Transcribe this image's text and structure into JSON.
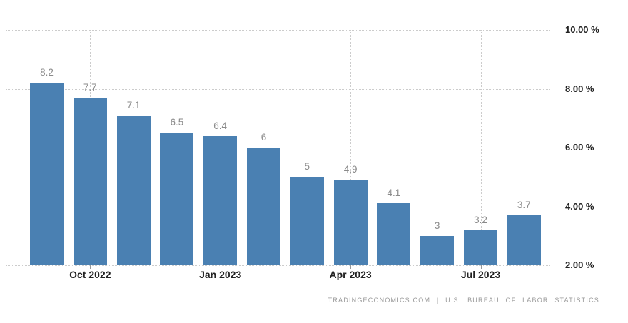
{
  "chart_data": {
    "type": "bar",
    "values": [
      8.2,
      7.7,
      7.1,
      6.5,
      6.4,
      6,
      5,
      4.9,
      4.1,
      3,
      3.2,
      3.7
    ],
    "bar_labels": [
      "8.2",
      "7.7",
      "7.1",
      "6.5",
      "6.4",
      "6",
      "5",
      "4.9",
      "4.1",
      "3",
      "3.2",
      "3.7"
    ],
    "x_ticks": [
      {
        "label": "Oct 2022",
        "bar_index": 1
      },
      {
        "label": "Jan 2023",
        "bar_index": 4
      },
      {
        "label": "Apr 2023",
        "bar_index": 7
      },
      {
        "label": "Jul 2023",
        "bar_index": 10
      }
    ],
    "y_ticks": [
      {
        "label": "10.00 %",
        "value": 10
      },
      {
        "label": "8.00 %",
        "value": 8
      },
      {
        "label": "6.00 %",
        "value": 6
      },
      {
        "label": "4.00 %",
        "value": 4
      },
      {
        "label": "2.00 %",
        "value": 2
      }
    ],
    "ylim": [
      2,
      10
    ],
    "grid": true,
    "legend": "none",
    "colors": {
      "bar": "#4a80b2",
      "grid": "#cccccc",
      "value_label": "#8a8a8a",
      "axis_label": "#222222",
      "tick_mark": "#999999"
    }
  },
  "attribution": {
    "text": "TRADINGECONOMICS.COM | U.S. BUREAU OF LABOR STATISTICS"
  }
}
